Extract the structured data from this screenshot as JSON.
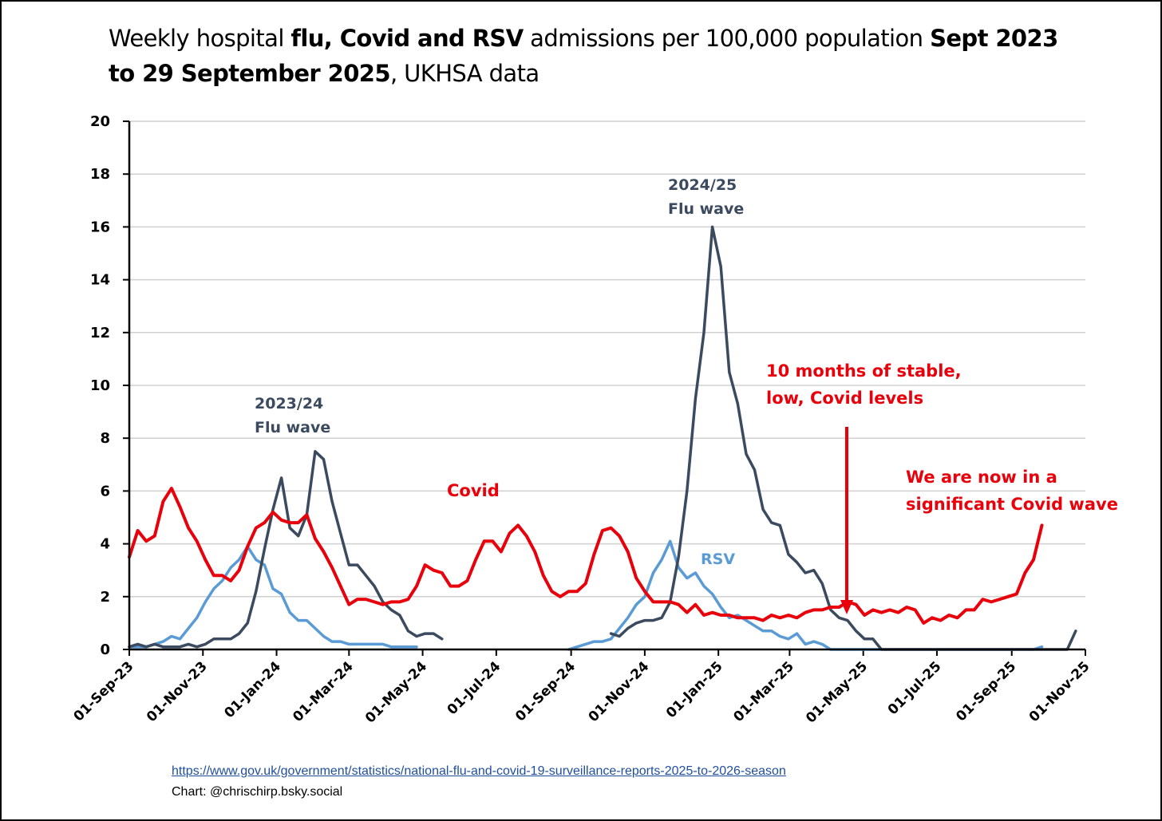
{
  "title": {
    "parts": [
      {
        "text": "Weekly hospital ",
        "bold": false
      },
      {
        "text": "flu, Covid and RSV",
        "bold": true
      },
      {
        "text": " admissions per 100,000 population ",
        "bold": false
      },
      {
        "text": "Sept 2023 to 29 September 2025",
        "bold": true
      },
      {
        "text": ", UKHSA data",
        "bold": false
      }
    ]
  },
  "footer": {
    "source_link": "https://www.gov.uk/government/statistics/national-flu-and-covid-19-surveillance-reports-2025-to-2026-season",
    "credit": "Chart: @chrischirp.bsky.social"
  },
  "annotations": {
    "flu_2023_line1": "2023/24",
    "flu_2023_line2": "Flu wave",
    "flu_2024_line1": "2024/25",
    "flu_2024_line2": "Flu wave",
    "covid_label": "Covid",
    "rsv_label": "RSV",
    "stable_line1": "10 months of stable,",
    "stable_line2": "low, Covid levels",
    "wave_line1": "We are now in a",
    "wave_line2": "significant Covid wave"
  },
  "colors": {
    "covid": "#e8000b",
    "flu": "#3b4a5e",
    "rsv": "#5b9bd5",
    "grid": "#d0d0d0",
    "axis": "#000000"
  },
  "chart_data": {
    "type": "line",
    "title": "Weekly hospital flu, Covid and RSV admissions per 100,000 population Sept 2023 to 29 September 2025, UKHSA data",
    "xlabel": "",
    "ylabel": "",
    "ylim": [
      0,
      20
    ],
    "yticks": [
      0,
      2,
      4,
      6,
      8,
      10,
      12,
      14,
      16,
      18,
      20
    ],
    "x_axis_type": "date",
    "xlim": [
      "2023-09-01",
      "2025-11-01"
    ],
    "xtick_dates": [
      "2023-09-01",
      "2023-11-01",
      "2024-01-01",
      "2024-03-01",
      "2024-05-01",
      "2024-07-01",
      "2024-09-01",
      "2024-11-01",
      "2025-01-01",
      "2025-03-01",
      "2025-05-01",
      "2025-07-01",
      "2025-09-01",
      "2025-11-01"
    ],
    "xtick_labels": [
      "01-Sep-23",
      "01-Nov-23",
      "01-Jan-24",
      "01-Mar-24",
      "01-May-24",
      "01-Jul-24",
      "01-Sep-24",
      "01-Nov-24",
      "01-Jan-25",
      "01-Mar-25",
      "01-May-25",
      "01-Jul-25",
      "01-Sep-25",
      "01-Nov-25"
    ],
    "grid": true,
    "legend": "none (inline annotations)",
    "week_start": "2023-09-01",
    "week_step_days": 7,
    "series": [
      {
        "name": "Covid",
        "start_week": 0,
        "values": [
          3.5,
          4.5,
          4.1,
          4.3,
          5.6,
          6.1,
          5.4,
          4.6,
          4.1,
          3.4,
          2.8,
          2.8,
          2.6,
          3.0,
          3.9,
          4.6,
          4.8,
          5.2,
          4.9,
          4.8,
          4.8,
          5.1,
          4.2,
          3.7,
          3.1,
          2.4,
          1.7,
          1.9,
          1.9,
          1.8,
          1.7,
          1.8,
          1.8,
          1.9,
          2.4,
          3.2,
          3.0,
          2.9,
          2.4,
          2.4,
          2.6,
          3.4,
          4.1,
          4.1,
          3.7,
          4.4,
          4.7,
          4.3,
          3.7,
          2.8,
          2.2,
          2.0,
          2.2,
          2.2,
          2.5,
          3.6,
          4.5,
          4.6,
          4.3,
          3.7,
          2.7,
          2.2,
          1.8,
          1.8,
          1.8,
          1.7,
          1.4,
          1.7,
          1.3,
          1.4,
          1.3,
          1.3,
          1.2,
          1.2,
          1.2,
          1.1,
          1.3,
          1.2,
          1.3,
          1.2,
          1.4,
          1.5,
          1.5,
          1.6,
          1.6,
          1.8,
          1.7,
          1.3,
          1.5,
          1.4,
          1.5,
          1.4,
          1.6,
          1.5,
          1.0,
          1.2,
          1.1,
          1.3,
          1.2,
          1.5,
          1.5,
          1.9,
          1.8,
          1.9,
          2.0,
          2.1,
          2.9,
          3.4,
          4.7
        ]
      },
      {
        "name": "Flu",
        "segments": [
          {
            "start_week": 0,
            "values": [
              0.1,
              0.2,
              0.1,
              0.2,
              0.1,
              0.1,
              0.1,
              0.2,
              0.1,
              0.2,
              0.4,
              0.4,
              0.4,
              0.6,
              1.0,
              2.2,
              3.8,
              5.3,
              6.5,
              4.6,
              4.3,
              5.1,
              7.5,
              7.2,
              5.6,
              4.4,
              3.2,
              3.2,
              2.8,
              2.4,
              1.8,
              1.5,
              1.3,
              0.7,
              0.5,
              0.6,
              0.6,
              0.4
            ]
          },
          {
            "start_week": 57,
            "values": [
              0.6,
              0.5,
              0.8,
              1.0,
              1.1,
              1.1,
              1.2,
              1.8,
              3.5,
              6.0,
              9.5,
              12.0,
              16.0,
              14.5,
              10.5,
              9.3,
              7.4,
              6.8,
              5.3,
              4.8,
              4.7,
              3.6,
              3.3,
              2.9,
              3.0,
              2.5,
              1.5,
              1.2,
              1.1,
              0.7,
              0.4,
              0.4,
              0.0,
              0.0,
              0.0,
              0.0,
              0.0,
              0.0,
              0.0,
              0.0,
              0.0,
              0.0,
              0.0,
              0.0,
              0.0,
              0.0,
              0.0,
              0.0,
              0.0,
              0.0,
              0.0,
              0.0,
              0.0,
              0.0,
              0.0,
              0.7
            ]
          }
        ]
      },
      {
        "name": "RSV",
        "segments": [
          {
            "start_week": 0,
            "values": [
              0.1,
              0.1,
              0.1,
              0.2,
              0.3,
              0.5,
              0.4,
              0.8,
              1.2,
              1.8,
              2.3,
              2.6,
              3.1,
              3.4,
              3.9,
              3.4,
              3.2,
              2.3,
              2.1,
              1.4,
              1.1,
              1.1,
              0.8,
              0.5,
              0.3,
              0.3,
              0.2,
              0.2,
              0.2,
              0.2,
              0.2,
              0.1,
              0.1,
              0.1,
              0.1
            ]
          },
          {
            "start_week": 52,
            "values": [
              0.0,
              0.1,
              0.2,
              0.3,
              0.3,
              0.4,
              0.8,
              1.2,
              1.7,
              2.0,
              2.9,
              3.4,
              4.1,
              3.1,
              2.7,
              2.9,
              2.4,
              2.1,
              1.6,
              1.2,
              1.3,
              1.1,
              0.9,
              0.7,
              0.7,
              0.5,
              0.4,
              0.6,
              0.2,
              0.3,
              0.2,
              0.0,
              0.0,
              0.0,
              0.0,
              0.0,
              0.0,
              0.0,
              0.0,
              0.0,
              0.0,
              0.0,
              0.0,
              0.0,
              0.0,
              0.0,
              0.0,
              0.0,
              0.0,
              0.0,
              0.0,
              0.0,
              0.0,
              0.0,
              0.0,
              0.0,
              0.1
            ]
          }
        ]
      }
    ]
  }
}
